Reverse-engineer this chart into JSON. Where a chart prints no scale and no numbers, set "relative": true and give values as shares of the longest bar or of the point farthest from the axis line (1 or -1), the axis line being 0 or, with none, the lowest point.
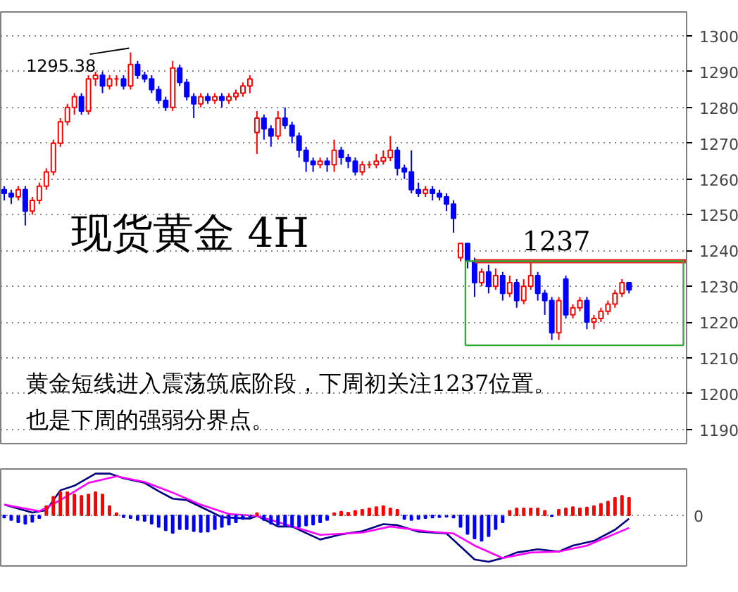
{
  "chart_data": [
    {
      "type": "candlestick",
      "title": "现货黄金  4H",
      "tick_labels": "y",
      "grid": "y",
      "ylim": [
        1186,
        1306.7
      ],
      "yticks": [
        1190,
        1200,
        1210,
        1220,
        1230,
        1240,
        1250,
        1260,
        1270,
        1280,
        1290,
        1300
      ],
      "colors": [
        "#0000ff",
        "#0000ff",
        "#ff0000",
        "#0000ff",
        "#ff0000",
        "#ff0000",
        "#ff0000",
        "#ff0000",
        "#ff0000",
        "#ff0000",
        "#ff0000",
        "#0000ff",
        "#ff0000",
        "#ff0000",
        "#0000ff",
        "#ff0000",
        "#ff0000",
        "#0000ff",
        "#ff0000",
        "#0000ff",
        "#0000ff",
        "#0000ff",
        "#0000ff",
        "#0000ff",
        "#ff0000",
        "#0000ff",
        "#0000ff",
        "#0000ff",
        "#ff0000",
        "#0000ff",
        "#ff0000",
        "#0000ff",
        "#ff0000",
        "#ff0000",
        "#ff0000",
        "#ff0000",
        "#ff0000",
        "#0000ff",
        "#0000ff",
        "#ff0000",
        "#0000ff",
        "#0000ff",
        "#0000ff",
        "#0000ff",
        "#0000ff",
        "#ff0000",
        "#0000ff",
        "#ff0000",
        "#0000ff",
        "#0000ff",
        "#0000ff",
        "#ff0000",
        "#ff0000",
        "#ff0000",
        "#ff0000",
        "#ff0000",
        "#0000ff",
        "#0000ff",
        "#0000ff",
        "#0000ff",
        "#ff0000",
        "#0000ff",
        "#0000ff",
        "#0000ff",
        "#0000ff",
        "#ff0000",
        "#0000ff",
        "#0000ff",
        "#ff0000",
        "#0000ff",
        "#ff0000",
        "#0000ff",
        "#ff0000",
        "#0000ff",
        "#ff0000",
        "#ff0000",
        "#0000ff",
        "#0000ff",
        "#0000ff",
        "#ff0000",
        "#0000ff",
        "#ff0000",
        "#ff0000",
        "#0000ff",
        "#ff0000",
        "#ff0000",
        "#ff0000",
        "#ff0000",
        "#ff0000",
        "#0000ff"
      ],
      "categories": [
        null,
        null,
        null,
        null,
        null,
        null,
        null,
        null,
        null,
        null,
        null,
        null,
        null,
        null,
        null,
        null,
        null,
        null,
        null,
        null,
        null,
        null,
        null,
        null,
        null,
        null,
        null,
        null,
        null,
        null,
        null,
        null,
        null,
        null,
        null,
        null,
        null,
        null,
        null,
        null,
        null,
        null,
        null,
        null,
        null,
        null,
        null,
        null,
        null,
        null,
        null,
        null,
        null,
        null,
        null,
        null,
        null,
        null,
        null,
        null,
        null,
        null,
        null,
        null,
        null,
        null,
        null,
        null,
        null,
        null,
        null,
        null,
        null,
        null,
        null,
        null,
        null,
        null,
        null,
        null,
        null,
        null,
        null,
        null,
        null,
        null,
        null,
        null,
        null,
        null
      ],
      "ohlc": [
        [
          1257,
          1258,
          1254,
          1256
        ],
        [
          1256,
          1257,
          1253,
          1255
        ],
        [
          1255,
          1258,
          1254,
          1257
        ],
        [
          1257,
          1258,
          1247,
          1251
        ],
        [
          1251,
          1255,
          1250,
          1254
        ],
        [
          1254,
          1259,
          1253,
          1258
        ],
        [
          1258,
          1263,
          1257,
          1262
        ],
        [
          1262,
          1271,
          1261,
          1270
        ],
        [
          1270,
          1277,
          1269,
          1276
        ],
        [
          1276,
          1281,
          1275,
          1280
        ],
        [
          1280,
          1284,
          1278,
          1283
        ],
        [
          1283,
          1284,
          1278,
          1279
        ],
        [
          1279,
          1289,
          1278,
          1288
        ],
        [
          1288,
          1290,
          1286,
          1289
        ],
        [
          1289,
          1290,
          1284,
          1286
        ],
        [
          1286,
          1289,
          1285,
          1288
        ],
        [
          1288,
          1289,
          1286,
          1288
        ],
        [
          1288,
          1289,
          1285,
          1286
        ],
        [
          1286,
          1295.38,
          1285,
          1292
        ],
        [
          1292,
          1293,
          1288,
          1289
        ],
        [
          1289,
          1290,
          1287,
          1288
        ],
        [
          1288,
          1289,
          1284,
          1285
        ],
        [
          1285,
          1286,
          1281,
          1282
        ],
        [
          1282,
          1283,
          1279,
          1280
        ],
        [
          1280,
          1293,
          1279,
          1291
        ],
        [
          1291,
          1292,
          1286,
          1287
        ],
        [
          1287,
          1288,
          1282,
          1283
        ],
        [
          1283,
          1284,
          1277,
          1281
        ],
        [
          1281,
          1284,
          1280,
          1283
        ],
        [
          1283,
          1284,
          1281,
          1282
        ],
        [
          1282,
          1284,
          1281,
          1283
        ],
        [
          1283,
          1284,
          1280,
          1282
        ],
        [
          1282,
          1284,
          1281,
          1283
        ],
        [
          1283,
          1285,
          1282,
          1284
        ],
        [
          1284,
          1287,
          1283,
          1286
        ],
        [
          1286,
          1289,
          1284,
          1288
        ],
        [
          1273,
          1279,
          1267,
          1277
        ],
        [
          1277,
          1278,
          1271,
          1274
        ],
        [
          1274,
          1275,
          1269,
          1272
        ],
        [
          1272,
          1279,
          1271,
          1277
        ],
        [
          1277,
          1280,
          1274,
          1275
        ],
        [
          1275,
          1276,
          1270,
          1272
        ],
        [
          1272,
          1273,
          1266,
          1268
        ],
        [
          1268,
          1269,
          1262,
          1265
        ],
        [
          1265,
          1266,
          1262,
          1264
        ],
        [
          1264,
          1266,
          1263,
          1265
        ],
        [
          1265,
          1266,
          1262,
          1264
        ],
        [
          1264,
          1271,
          1262,
          1268
        ],
        [
          1268,
          1269,
          1264,
          1266
        ],
        [
          1266,
          1267,
          1263,
          1265
        ],
        [
          1265,
          1266,
          1261,
          1262
        ],
        [
          1262,
          1265,
          1261,
          1264
        ],
        [
          1264,
          1265,
          1263,
          1264
        ],
        [
          1264,
          1267,
          1263,
          1265
        ],
        [
          1265,
          1268,
          1264,
          1266
        ],
        [
          1266,
          1272,
          1265,
          1268
        ],
        [
          1268,
          1269,
          1261,
          1263
        ],
        [
          1263,
          1264,
          1260,
          1262
        ],
        [
          1262,
          1268,
          1256,
          1257
        ],
        [
          1257,
          1259,
          1255,
          1256
        ],
        [
          1256,
          1258,
          1255,
          1257
        ],
        [
          1257,
          1258,
          1254,
          1256
        ],
        [
          1256,
          1257,
          1254,
          1255
        ],
        [
          1255,
          1256,
          1251,
          1253
        ],
        [
          1253,
          1254,
          1245,
          1249
        ],
        [
          1238,
          1242,
          1237,
          1242
        ],
        [
          1242,
          1242,
          1235,
          1237
        ],
        [
          1237,
          1238,
          1227,
          1231
        ],
        [
          1231,
          1235,
          1230,
          1234
        ],
        [
          1234,
          1236,
          1228,
          1230
        ],
        [
          1230,
          1235,
          1229,
          1233
        ],
        [
          1233,
          1234,
          1226,
          1228
        ],
        [
          1228,
          1233,
          1227,
          1231
        ],
        [
          1231,
          1232,
          1224,
          1226
        ],
        [
          1226,
          1232,
          1225,
          1230
        ],
        [
          1230,
          1237,
          1229,
          1233
        ],
        [
          1233,
          1234,
          1226,
          1228
        ],
        [
          1228,
          1229,
          1222,
          1226
        ],
        [
          1226,
          1227,
          1215,
          1217
        ],
        [
          1217,
          1227,
          1215,
          1226
        ],
        [
          1232,
          1233,
          1221,
          1222
        ],
        [
          1222,
          1225,
          1221,
          1224
        ],
        [
          1224,
          1227,
          1223,
          1226
        ],
        [
          1226,
          1227,
          1218,
          1220
        ],
        [
          1220,
          1222,
          1218,
          1221
        ],
        [
          1221,
          1224,
          1220,
          1223
        ],
        [
          1223,
          1226,
          1222,
          1225
        ],
        [
          1225,
          1229,
          1224,
          1228
        ],
        [
          1228,
          1232,
          1227,
          1231
        ],
        [
          1231,
          1231,
          1228,
          1229
        ]
      ],
      "ref_lines": [
        {
          "axis": "y",
          "value": 1237,
          "label": "1237",
          "color": "#ee2222"
        }
      ],
      "annotations": [
        "1295.38",
        "黄金短线进入震荡筑底阶段，下周初关注1237位置。",
        "也是下周的强弱分界点。"
      ]
    },
    {
      "type": "bar",
      "relative": true,
      "tick_labels": false,
      "categories": [
        null,
        null,
        null,
        null,
        null,
        null,
        null,
        null,
        null,
        null,
        null,
        null,
        null,
        null,
        null,
        null,
        null,
        null,
        null,
        null,
        null,
        null,
        null,
        null,
        null,
        null,
        null,
        null,
        null,
        null,
        null,
        null,
        null,
        null,
        null,
        null,
        null,
        null,
        null,
        null,
        null,
        null,
        null,
        null,
        null,
        null,
        null,
        null,
        null,
        null,
        null,
        null,
        null,
        null,
        null,
        null,
        null,
        null,
        null,
        null,
        null,
        null,
        null,
        null,
        null,
        null,
        null,
        null,
        null,
        null,
        null,
        null,
        null,
        null,
        null,
        null,
        null,
        null,
        null,
        null,
        null,
        null,
        null,
        null,
        null,
        null,
        null,
        null,
        null,
        null
      ],
      "series": [
        {
          "type": "bar",
          "values": [
            -0.05,
            -0.1,
            -0.15,
            -0.18,
            -0.14,
            -0.06,
            0.2,
            0.4,
            0.5,
            0.5,
            0.45,
            0.42,
            0.45,
            0.5,
            0.45,
            0.2,
            0.05,
            -0.04,
            -0.06,
            -0.1,
            -0.12,
            -0.18,
            -0.25,
            -0.32,
            -0.38,
            -0.3,
            -0.3,
            -0.34,
            -0.36,
            -0.35,
            -0.3,
            -0.25,
            -0.2,
            -0.15,
            -0.08,
            -0.03,
            0.05,
            -0.1,
            -0.18,
            -0.2,
            -0.22,
            -0.25,
            -0.25,
            -0.22,
            -0.2,
            -0.15,
            -0.1,
            0.05,
            0.08,
            0.06,
            0.1,
            0.12,
            0.15,
            0.18,
            0.2,
            0.15,
            0.12,
            -0.08,
            -0.1,
            -0.08,
            -0.06,
            -0.05,
            -0.04,
            -0.03,
            -0.05,
            -0.25,
            -0.4,
            -0.5,
            -0.55,
            -0.45,
            -0.3,
            -0.15,
            0.1,
            0.15,
            0.15,
            0.15,
            0.15,
            0.1,
            -0.02,
            0.12,
            0.15,
            0.18,
            0.15,
            0.17,
            0.2,
            0.25,
            0.3,
            0.38,
            0.42,
            0.38
          ],
          "colors": [
            "#0000ff",
            "#0000ff",
            "#0000ff",
            "#0000ff",
            "#0000ff",
            "#0000ff",
            "#ff0000",
            "#ff0000",
            "#ff0000",
            "#ff0000",
            "#ff0000",
            "#ff0000",
            "#ff0000",
            "#ff0000",
            "#ff0000",
            "#ff0000",
            "#ff0000",
            "#0000ff",
            "#0000ff",
            "#0000ff",
            "#0000ff",
            "#0000ff",
            "#0000ff",
            "#0000ff",
            "#0000ff",
            "#0000ff",
            "#0000ff",
            "#0000ff",
            "#0000ff",
            "#0000ff",
            "#0000ff",
            "#0000ff",
            "#0000ff",
            "#0000ff",
            "#0000ff",
            "#0000ff",
            "#ff0000",
            "#0000ff",
            "#0000ff",
            "#0000ff",
            "#0000ff",
            "#0000ff",
            "#0000ff",
            "#0000ff",
            "#0000ff",
            "#0000ff",
            "#0000ff",
            "#ff0000",
            "#ff0000",
            "#ff0000",
            "#ff0000",
            "#ff0000",
            "#ff0000",
            "#ff0000",
            "#ff0000",
            "#ff0000",
            "#ff0000",
            "#0000ff",
            "#0000ff",
            "#0000ff",
            "#0000ff",
            "#0000ff",
            "#0000ff",
            "#0000ff",
            "#0000ff",
            "#0000ff",
            "#0000ff",
            "#0000ff",
            "#0000ff",
            "#0000ff",
            "#0000ff",
            "#0000ff",
            "#ff0000",
            "#ff0000",
            "#ff0000",
            "#ff0000",
            "#ff0000",
            "#ff0000",
            "#0000ff",
            "#ff0000",
            "#ff0000",
            "#ff0000",
            "#ff0000",
            "#ff0000",
            "#ff0000",
            "#ff0000",
            "#ff0000",
            "#ff0000",
            "#ff0000",
            "#ff0000"
          ]
        },
        {
          "type": "line",
          "color": "#000080",
          "values": [
            0.23,
            null,
            null,
            null,
            0.06,
            null,
            0.11,
            null,
            0.54,
            null,
            0.64,
            null,
            null,
            0.9,
            null,
            0.9,
            null,
            0.8,
            null,
            null,
            0.7,
            null,
            0.52,
            null,
            0.36,
            null,
            0.33,
            null,
            null,
            0.11,
            null,
            -0.04,
            null,
            null,
            null,
            -0.07,
            -0.01,
            null,
            null,
            -0.24,
            null,
            -0.24,
            null,
            null,
            null,
            -0.52,
            null,
            null,
            -0.41,
            null,
            null,
            -0.34,
            null,
            null,
            -0.19,
            null,
            -0.21,
            null,
            null,
            -0.35,
            null,
            null,
            null,
            -0.39,
            null,
            null,
            null,
            -0.95,
            null,
            -1.0,
            null,
            -0.92,
            null,
            -0.8,
            null,
            null,
            -0.73,
            null,
            null,
            -0.78,
            null,
            -0.65,
            null,
            null,
            -0.55,
            null,
            null,
            -0.31,
            null,
            -0.07
          ]
        },
        {
          "type": "line",
          "color": "#ff00ff",
          "values": [
            0.23,
            null,
            null,
            null,
            null,
            0.09,
            null,
            null,
            0.33,
            null,
            null,
            null,
            0.7,
            null,
            null,
            null,
            0.84,
            null,
            null,
            null,
            0.72,
            null,
            null,
            null,
            0.49,
            null,
            null,
            null,
            0.23,
            null,
            null,
            null,
            0.03,
            null,
            null,
            null,
            -0.01,
            null,
            null,
            null,
            -0.19,
            null,
            null,
            null,
            null,
            -0.42,
            null,
            null,
            null,
            null,
            null,
            -0.37,
            null,
            null,
            null,
            -0.24,
            null,
            null,
            null,
            null,
            -0.34,
            null,
            null,
            null,
            -0.39,
            null,
            null,
            -0.65,
            null,
            null,
            null,
            -0.92,
            null,
            null,
            null,
            -0.8,
            null,
            null,
            null,
            -0.78,
            null,
            null,
            null,
            -0.65,
            null,
            null,
            null,
            null,
            null,
            -0.27
          ]
        }
      ],
      "ref_lines": [
        {
          "axis": "y",
          "value": 0,
          "color": "#888888",
          "line_style": "dotted"
        }
      ],
      "annotations": [
        "0"
      ]
    }
  ]
}
